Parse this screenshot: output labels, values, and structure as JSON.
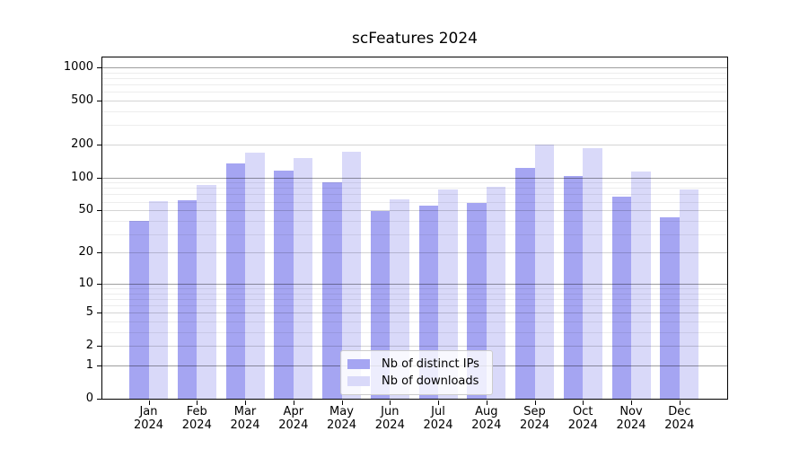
{
  "chart_data": {
    "type": "bar",
    "title": "scFeatures 2024",
    "categories": [
      "Jan 2024",
      "Feb 2024",
      "Mar 2024",
      "Apr 2024",
      "May 2024",
      "Jun 2024",
      "Jul 2024",
      "Aug 2024",
      "Sep 2024",
      "Oct 2024",
      "Nov 2024",
      "Dec 2024"
    ],
    "series": [
      {
        "name": "Nb of distinct IPs",
        "color": "#a5a5f2",
        "values": [
          40,
          62,
          135,
          116,
          91,
          49,
          55,
          58,
          123,
          103,
          66,
          43
        ]
      },
      {
        "name": "Nb of downloads",
        "color": "#d9d9f9",
        "values": [
          61,
          86,
          168,
          150,
          170,
          63,
          77,
          82,
          200,
          186,
          113,
          77
        ]
      }
    ],
    "yscale": "log1p",
    "ylim": [
      0,
      1230
    ],
    "yticks_labeled": [
      0,
      1,
      2,
      5,
      10,
      20,
      50,
      100,
      200,
      500,
      1000
    ],
    "grid": true,
    "legend_position": "lower-center-inside",
    "xlabel": "",
    "ylabel": ""
  }
}
